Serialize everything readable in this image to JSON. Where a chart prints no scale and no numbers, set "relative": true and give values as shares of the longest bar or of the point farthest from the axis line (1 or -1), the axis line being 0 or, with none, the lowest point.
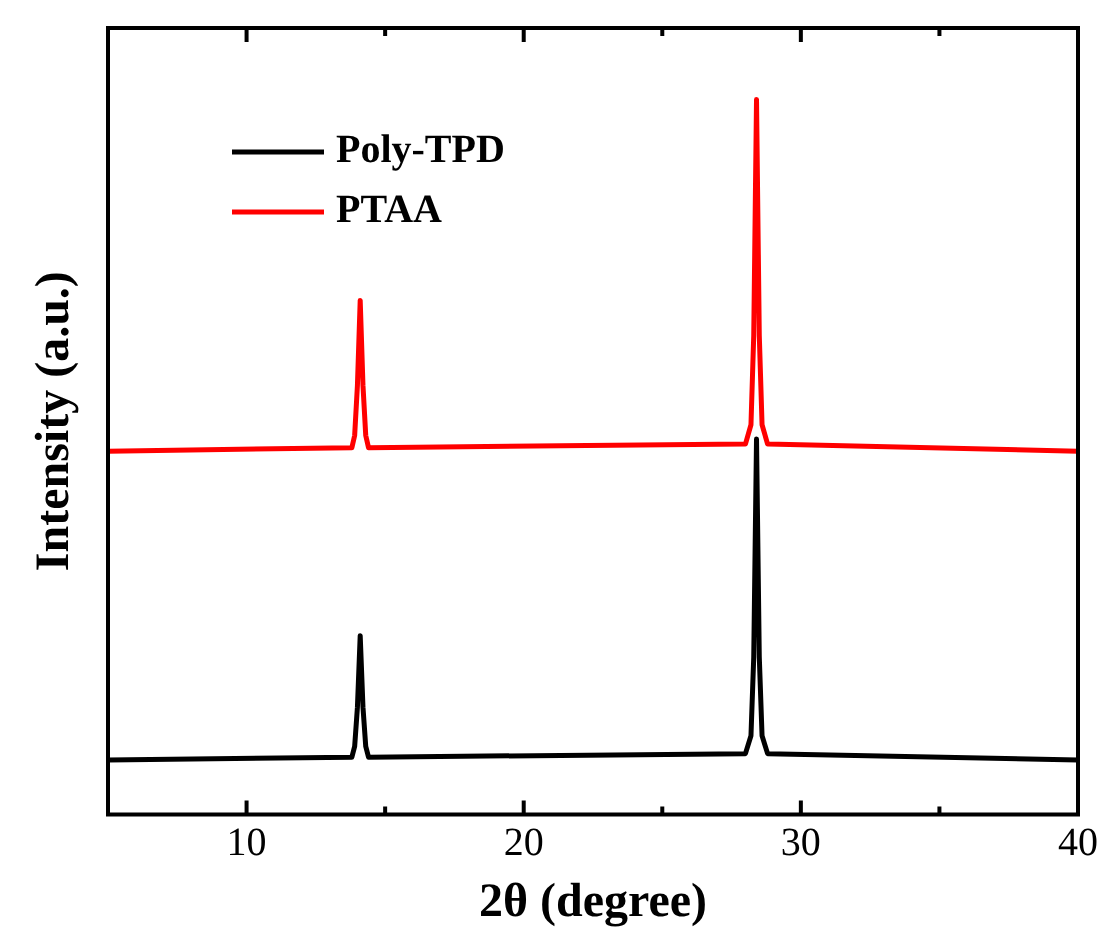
{
  "chart_data": {
    "type": "line",
    "xlabel": "2θ (degree)",
    "ylabel": "Intensity (a.u.)",
    "relative": true,
    "legend": "top left",
    "marker": "none",
    "line_style": "solid",
    "xlim": [
      5,
      40
    ],
    "xticks": [
      10,
      {
        "value": 15,
        "label": null
      },
      20,
      {
        "value": 25,
        "label": null
      },
      30,
      {
        "value": 35,
        "label": null
      },
      40
    ],
    "x": [
      5,
      13.8,
      13.9,
      14.0,
      14.1,
      14.2,
      14.3,
      14.4,
      28.0,
      28.2,
      28.3,
      28.4,
      28.5,
      28.6,
      28.8,
      40
    ],
    "series": [
      {
        "name": "Poly-TPD",
        "color": "#000000",
        "values": [
          0.076,
          0.08,
          0.095,
          0.15,
          0.25,
          0.15,
          0.095,
          0.08,
          0.085,
          0.11,
          0.22,
          0.525,
          0.22,
          0.11,
          0.085,
          0.076
        ]
      },
      {
        "name": "PTAA",
        "color": "#ff0000",
        "values": [
          0.508,
          0.513,
          0.53,
          0.6,
          0.719,
          0.6,
          0.53,
          0.513,
          0.518,
          0.545,
          0.67,
          1,
          0.67,
          0.545,
          0.518,
          0.508
        ]
      }
    ]
  }
}
